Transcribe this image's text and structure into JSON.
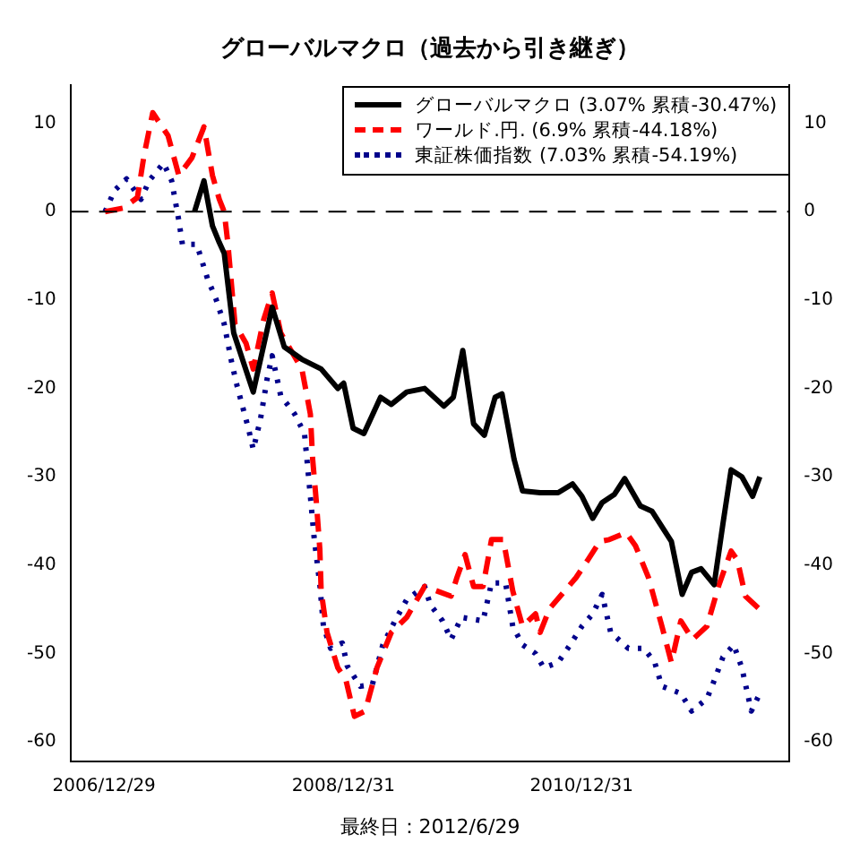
{
  "chart_data": {
    "type": "line",
    "title": "グローバルマクロ（過去から引き継ぎ）",
    "annotations": [
      "最終日：2012/6/29"
    ],
    "legend": "top right",
    "marker": "none",
    "xlim": [
      "2006-09-17",
      "2012-09-28"
    ],
    "xticks": [
      {
        "value": "2006-12-29",
        "label": "2006/12/29"
      },
      {
        "value": "2008-12-31",
        "label": "2008/12/31"
      },
      {
        "value": "2010-12-31",
        "label": "2010/12/31"
      }
    ],
    "ylim": [
      -62.2,
      14.3
    ],
    "yticks": [
      -60,
      -50,
      -40,
      -30,
      -20,
      -10,
      0,
      10
    ],
    "y2lim": [
      -62.2,
      14.3
    ],
    "y2ticks": [
      -60,
      -50,
      -40,
      -30,
      -20,
      -10,
      0,
      10
    ],
    "ref_lines": [
      {
        "axis": "y",
        "value": 0,
        "line_style": "dashed",
        "color": "#000000"
      }
    ],
    "series": [
      {
        "name": "グローバルマクロ (3.07% 累積-30.47%)",
        "color": "#000000",
        "line_style": "solid",
        "x": [
          "2007-10-02",
          "2007-10-31",
          "2007-11-26",
          "2007-12-17",
          "2008-01-01",
          "2008-01-30",
          "2008-03-30",
          "2008-05-27",
          "2008-07-03",
          "2008-08-26",
          "2008-10-24",
          "2008-12-14",
          "2009-01-01",
          "2009-01-30",
          "2009-03-04",
          "2009-04-24",
          "2009-05-27",
          "2009-07-13",
          "2009-09-06",
          "2009-11-04",
          "2009-12-03",
          "2010-01-01",
          "2010-02-03",
          "2010-03-08",
          "2010-04-10",
          "2010-05-01",
          "2010-06-07",
          "2010-07-03",
          "2010-08-26",
          "2010-10-20",
          "2010-12-03",
          "2011-01-01",
          "2011-02-03",
          "2011-03-04",
          "2011-04-10",
          "2011-05-12",
          "2011-06-29",
          "2011-08-04",
          "2011-10-02",
          "2011-11-04",
          "2011-12-03",
          "2012-01-01",
          "2012-02-10",
          "2012-03-08",
          "2012-04-02",
          "2012-05-05",
          "2012-06-07",
          "2012-06-29"
        ],
        "values": [
          0,
          3.5,
          -1.6,
          -3.5,
          -4.7,
          -13.7,
          -20.4,
          -10.8,
          -15.3,
          -16.7,
          -17.8,
          -20,
          -19.4,
          -24.5,
          -25.1,
          -21,
          -21.8,
          -20.4,
          -20,
          -22,
          -21,
          -15.7,
          -24,
          -25.3,
          -21,
          -20.6,
          -28,
          -31.6,
          -31.8,
          -31.8,
          -30.8,
          -32.2,
          -34.7,
          -32.9,
          -32,
          -30.2,
          -33.3,
          -33.9,
          -37.3,
          -43.3,
          -40.8,
          -40.4,
          -42.2,
          -35.3,
          -29.2,
          -30,
          -32.2,
          -30
        ]
      },
      {
        "name": "ワールド.円. (6.9% 累積-44.18%)",
        "color": "#ff0000",
        "line_style": "dashed",
        "x": [
          "2007-01-01",
          "2007-02-25",
          "2007-04-10",
          "2007-05-01",
          "2007-05-27",
          "2007-07-13",
          "2007-08-15",
          "2007-09-24",
          "2007-10-31",
          "2007-11-26",
          "2007-12-17",
          "2008-01-01",
          "2008-01-12",
          "2008-02-03",
          "2008-03-08",
          "2008-03-30",
          "2008-05-01",
          "2008-05-27",
          "2008-06-22",
          "2008-08-26",
          "2008-09-21",
          "2008-09-28",
          "2008-10-09",
          "2008-10-20",
          "2008-10-24",
          "2008-11-11",
          "2008-12-14",
          "2009-01-08",
          "2009-02-03",
          "2009-03-08",
          "2009-04-13",
          "2009-05-27",
          "2009-07-13",
          "2009-09-06",
          "2009-11-26",
          "2009-12-14",
          "2010-01-08",
          "2010-02-03",
          "2010-03-04",
          "2010-03-30",
          "2010-05-05",
          "2010-06-03",
          "2010-07-03",
          "2010-08-12",
          "2010-08-26",
          "2010-09-24",
          "2010-12-14",
          "2011-01-19",
          "2011-02-25",
          "2011-03-26",
          "2011-05-16",
          "2011-06-14",
          "2011-07-24",
          "2011-09-03",
          "2011-10-02",
          "2011-10-31",
          "2011-12-06",
          "2012-01-19",
          "2012-02-25",
          "2012-04-02",
          "2012-04-21",
          "2012-05-16",
          "2012-06-29"
        ],
        "values": [
          0,
          0.4,
          1.6,
          6.5,
          11.2,
          8.6,
          4.1,
          6.1,
          9.6,
          4.1,
          1.4,
          0,
          -3.5,
          -12.7,
          -14.9,
          -17.8,
          -12.2,
          -9.2,
          -13.7,
          -17.8,
          -22.9,
          -28,
          -32.7,
          -38.2,
          -42.9,
          -47.6,
          -51.6,
          -53,
          -57.1,
          -56.5,
          -51.6,
          -47.6,
          -45.9,
          -42.4,
          -43.5,
          -41.4,
          -38.8,
          -42.4,
          -42.4,
          -37.1,
          -37.1,
          -42.9,
          -46.9,
          -45.5,
          -47.6,
          -44.9,
          -41.4,
          -39.4,
          -37.3,
          -37.1,
          -36.3,
          -37.8,
          -41.4,
          -46.9,
          -51,
          -46.3,
          -48.4,
          -46.9,
          -42.2,
          -38.4,
          -39.4,
          -43.5,
          -45
        ]
      },
      {
        "name": "東証株価指数 (7.03% 累積-54.19%)",
        "color": "#00008b",
        "line_style": "dotted",
        "x": [
          "2007-01-01",
          "2007-01-30",
          "2007-03-08",
          "2007-04-21",
          "2007-05-16",
          "2007-06-29",
          "2007-07-24",
          "2007-08-15",
          "2007-08-26",
          "2007-10-09",
          "2007-11-11",
          "2007-12-06",
          "2008-01-01",
          "2008-01-23",
          "2008-02-10",
          "2008-03-15",
          "2008-03-30",
          "2008-04-21",
          "2008-05-12",
          "2008-05-27",
          "2008-06-22",
          "2008-08-04",
          "2008-09-03",
          "2008-09-21",
          "2008-10-02",
          "2008-10-20",
          "2008-10-31",
          "2008-11-22",
          "2008-12-28",
          "2009-01-12",
          "2009-02-21",
          "2009-03-30",
          "2009-05-01",
          "2009-06-07",
          "2009-07-13",
          "2009-09-06",
          "2009-09-24",
          "2009-10-31",
          "2009-11-26",
          "2009-12-28",
          "2010-03-04",
          "2010-03-30",
          "2010-05-12",
          "2010-06-03",
          "2010-07-03",
          "2010-08-12",
          "2010-09-06",
          "2010-10-20",
          "2010-11-26",
          "2011-01-01",
          "2011-02-03",
          "2011-03-04",
          "2011-03-30",
          "2011-05-23",
          "2011-07-10",
          "2011-08-12",
          "2011-09-03",
          "2011-10-31",
          "2011-12-03",
          "2012-01-19",
          "2012-02-14",
          "2012-03-08",
          "2012-04-10",
          "2012-05-05",
          "2012-06-03",
          "2012-06-29"
        ],
        "values": [
          0,
          2.4,
          3.7,
          1.4,
          3.5,
          5.5,
          3.5,
          -1,
          -3.7,
          -3.7,
          -7.6,
          -9.8,
          -12.7,
          -16.9,
          -19.8,
          -24.5,
          -26.9,
          -23.5,
          -18.8,
          -16.3,
          -20.8,
          -22.9,
          -25.1,
          -32.2,
          -36.7,
          -42.2,
          -46.9,
          -49.4,
          -48.8,
          -51.4,
          -53.7,
          -53.5,
          -49,
          -46.3,
          -43.9,
          -42.4,
          -44.5,
          -46.3,
          -48.4,
          -45.9,
          -46.3,
          -42,
          -42,
          -46.9,
          -49,
          -50,
          -51.6,
          -51,
          -49,
          -46.9,
          -45.5,
          -43.3,
          -47.6,
          -49.4,
          -49.4,
          -51,
          -53.7,
          -54.5,
          -56.5,
          -55.1,
          -52.7,
          -50.4,
          -49,
          -51.6,
          -56.5,
          -54.5
        ]
      }
    ]
  }
}
